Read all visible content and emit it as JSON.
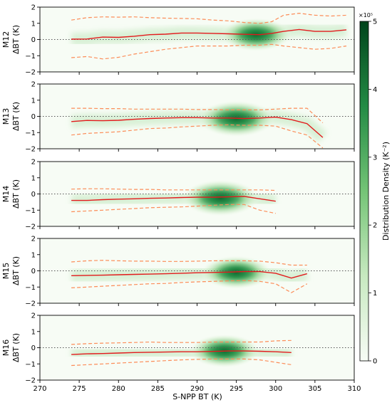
{
  "figure": {
    "xlabel": "S-NPP BT (K)",
    "colorbar": {
      "label": "Distribution Density (K⁻²)",
      "exponent": "×10⁵",
      "ticks": [
        "0",
        "1",
        "2",
        "3",
        "4",
        "5"
      ],
      "cmap": [
        "#f7fcf5",
        "#c7e9c0",
        "#74c476",
        "#238b45",
        "#00441b"
      ]
    },
    "colors": {
      "mean_line": "#e31a1c",
      "std_line": "#fc8d59",
      "zero_line": "#555555"
    }
  },
  "chart_data": [
    {
      "type": "line",
      "panel": "M12",
      "ylabel_top": "M12",
      "ylabel_bottom": "ΔBT (K)",
      "xlim": [
        270,
        310
      ],
      "ylim": [
        -2,
        2
      ],
      "xticks": [
        "270",
        "275",
        "280",
        "285",
        "290",
        "295",
        "300",
        "305",
        "310"
      ],
      "yticks": [
        "−2",
        "−1",
        "0",
        "1",
        "2"
      ],
      "x": [
        274,
        276,
        278,
        280,
        282,
        284,
        286,
        288,
        290,
        292,
        294,
        296,
        298,
        299.5,
        301,
        303,
        305,
        307,
        309
      ],
      "mean": [
        0.02,
        0.03,
        0.15,
        0.13,
        0.2,
        0.3,
        0.33,
        0.4,
        0.4,
        0.38,
        0.35,
        0.32,
        0.3,
        0.38,
        0.5,
        0.62,
        0.5,
        0.5,
        0.6
      ],
      "upper": [
        1.2,
        1.35,
        1.4,
        1.38,
        1.4,
        1.35,
        1.32,
        1.3,
        1.28,
        1.2,
        1.15,
        1.05,
        1.0,
        1.1,
        1.5,
        1.62,
        1.5,
        1.45,
        1.5
      ],
      "lower": [
        -1.12,
        -1.05,
        -1.2,
        -1.1,
        -0.9,
        -0.75,
        -0.6,
        -0.5,
        -0.4,
        -0.4,
        -0.4,
        -0.35,
        -0.35,
        -0.3,
        -0.4,
        -0.5,
        -0.6,
        -0.55,
        -0.4
      ],
      "density_peak": {
        "x": 297.5,
        "y": 0.3,
        "level": 4.5
      }
    },
    {
      "type": "line",
      "panel": "M13",
      "ylabel_top": "M13",
      "ylabel_bottom": "ΔBT (K)",
      "xlim": [
        270,
        310
      ],
      "ylim": [
        -2,
        2
      ],
      "xticks": [
        "270",
        "275",
        "280",
        "285",
        "290",
        "295",
        "300",
        "305",
        "310"
      ],
      "yticks": [
        "−2",
        "−1",
        "0",
        "1",
        "2"
      ],
      "x": [
        274,
        276,
        278,
        280,
        282,
        284,
        286,
        288,
        290,
        292,
        294,
        296,
        298,
        300,
        302,
        304,
        306
      ],
      "mean": [
        -0.32,
        -0.25,
        -0.27,
        -0.24,
        -0.18,
        -0.13,
        -0.1,
        -0.08,
        -0.08,
        -0.1,
        -0.1,
        -0.13,
        -0.1,
        -0.05,
        -0.2,
        -0.45,
        -1.3
      ],
      "upper": [
        0.5,
        0.5,
        0.48,
        0.48,
        0.45,
        0.45,
        0.45,
        0.45,
        0.42,
        0.42,
        0.4,
        0.4,
        0.4,
        0.45,
        0.5,
        0.5,
        -0.4
      ],
      "lower": [
        -1.15,
        -1.05,
        -1.0,
        -0.95,
        -0.85,
        -0.75,
        -0.72,
        -0.65,
        -0.6,
        -0.55,
        -0.52,
        -0.55,
        -0.55,
        -0.6,
        -0.9,
        -1.15,
        -1.95
      ],
      "density_peak": {
        "x": 295,
        "y": -0.15,
        "level": 5
      }
    },
    {
      "type": "line",
      "panel": "M14",
      "ylabel_top": "M14",
      "ylabel_bottom": "ΔBT (K)",
      "xlim": [
        270,
        310
      ],
      "ylim": [
        -2,
        2
      ],
      "xticks": [
        "270",
        "275",
        "280",
        "285",
        "290",
        "295",
        "300",
        "305",
        "310"
      ],
      "yticks": [
        "−2",
        "−1",
        "0",
        "1",
        "2"
      ],
      "x": [
        274,
        276,
        278,
        280,
        282,
        284,
        286,
        288,
        290,
        292,
        294,
        296,
        298,
        300
      ],
      "mean": [
        -0.4,
        -0.4,
        -0.35,
        -0.32,
        -0.3,
        -0.27,
        -0.25,
        -0.22,
        -0.2,
        -0.2,
        -0.18,
        -0.15,
        -0.3,
        -0.45
      ],
      "upper": [
        0.3,
        0.32,
        0.32,
        0.3,
        0.28,
        0.28,
        0.25,
        0.25,
        0.25,
        0.25,
        0.25,
        0.25,
        0.25,
        0.22
      ],
      "lower": [
        -1.1,
        -1.05,
        -1.0,
        -0.95,
        -0.9,
        -0.85,
        -0.82,
        -0.8,
        -0.75,
        -0.7,
        -0.65,
        -0.65,
        -1.0,
        -1.2
      ],
      "density_peak": {
        "x": 293,
        "y": -0.25,
        "level": 5
      }
    },
    {
      "type": "line",
      "panel": "M15",
      "ylabel_top": "M15",
      "ylabel_bottom": "ΔBT (K)",
      "xlim": [
        270,
        310
      ],
      "ylim": [
        -2,
        2
      ],
      "xticks": [
        "270",
        "275",
        "280",
        "285",
        "290",
        "295",
        "300",
        "305",
        "310"
      ],
      "yticks": [
        "−2",
        "−1",
        "0",
        "1",
        "2"
      ],
      "x": [
        274,
        276,
        278,
        280,
        282,
        284,
        286,
        288,
        290,
        292,
        294,
        296,
        298,
        300,
        302,
        304
      ],
      "mean": [
        -0.3,
        -0.28,
        -0.27,
        -0.24,
        -0.22,
        -0.2,
        -0.18,
        -0.15,
        -0.12,
        -0.1,
        -0.08,
        -0.05,
        -0.05,
        -0.15,
        -0.45,
        -0.18
      ],
      "upper": [
        0.55,
        0.62,
        0.65,
        0.62,
        0.6,
        0.6,
        0.58,
        0.58,
        0.6,
        0.62,
        0.62,
        0.62,
        0.6,
        0.5,
        0.35,
        0.35
      ],
      "lower": [
        -1.05,
        -1.0,
        -0.95,
        -0.9,
        -0.85,
        -0.8,
        -0.78,
        -0.72,
        -0.68,
        -0.65,
        -0.62,
        -0.6,
        -0.65,
        -0.8,
        -1.35,
        -0.8
      ],
      "density_peak": {
        "x": 295,
        "y": -0.1,
        "level": 4.5
      }
    },
    {
      "type": "line",
      "panel": "M16",
      "ylabel_top": "M16",
      "ylabel_bottom": "ΔBT (K)",
      "xlim": [
        270,
        310
      ],
      "ylim": [
        -2,
        2
      ],
      "xticks": [
        "270",
        "275",
        "280",
        "285",
        "290",
        "295",
        "300",
        "305",
        "310"
      ],
      "yticks": [
        "−2",
        "−1",
        "0",
        "1",
        "2"
      ],
      "x": [
        274,
        276,
        278,
        280,
        282,
        284,
        286,
        288,
        290,
        292,
        294,
        296,
        298,
        300,
        302
      ],
      "mean": [
        -0.42,
        -0.38,
        -0.36,
        -0.33,
        -0.3,
        -0.28,
        -0.27,
        -0.25,
        -0.25,
        -0.23,
        -0.2,
        -0.2,
        -0.22,
        -0.25,
        -0.3
      ],
      "upper": [
        0.2,
        0.25,
        0.28,
        0.3,
        0.32,
        0.35,
        0.32,
        0.32,
        0.32,
        0.35,
        0.35,
        0.35,
        0.35,
        0.42,
        0.45
      ],
      "lower": [
        -1.1,
        -1.05,
        -1.0,
        -0.95,
        -0.9,
        -0.85,
        -0.8,
        -0.75,
        -0.72,
        -0.7,
        -0.7,
        -0.7,
        -0.75,
        -0.9,
        -1.05
      ],
      "density_peak": {
        "x": 293.5,
        "y": -0.2,
        "level": 4.5
      }
    }
  ]
}
